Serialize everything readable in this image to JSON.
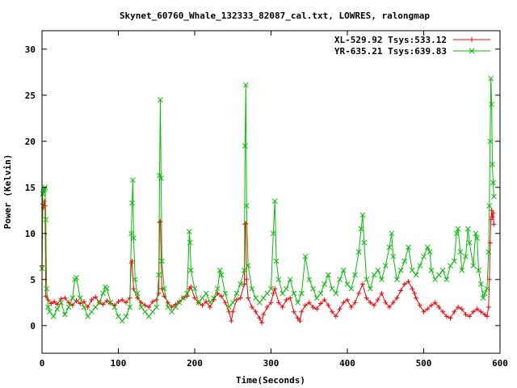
{
  "chart_data": {
    "type": "line",
    "title": "Skynet_60760_Whale_132333_82087_cal.txt, LOWRES, ralongmap",
    "xlabel": "Time(Seconds)",
    "ylabel": "Power (Kelvin)",
    "xlim": [
      0,
      600
    ],
    "ylim": [
      -3,
      32
    ],
    "xticks": [
      0,
      100,
      200,
      300,
      400,
      500,
      600
    ],
    "yticks": [
      0,
      5,
      10,
      15,
      20,
      25,
      30
    ],
    "grid": false,
    "legend_position": "top-right",
    "series": [
      {
        "name": "XL-529.92 Tsys:533.12",
        "color": "#ff0000",
        "marker": "plus",
        "points": [
          [
            0,
            6.5
          ],
          [
            1,
            13.2
          ],
          [
            2,
            12.8
          ],
          [
            3,
            13.5
          ],
          [
            4,
            13.0
          ],
          [
            5,
            3.2
          ],
          [
            8,
            2.8
          ],
          [
            12,
            2.4
          ],
          [
            16,
            2.6
          ],
          [
            20,
            2.3
          ],
          [
            25,
            2.9
          ],
          [
            30,
            3.0
          ],
          [
            35,
            2.5
          ],
          [
            40,
            2.2
          ],
          [
            45,
            2.7
          ],
          [
            50,
            2.4
          ],
          [
            55,
            2.6
          ],
          [
            60,
            2.0
          ],
          [
            65,
            2.8
          ],
          [
            70,
            3.1
          ],
          [
            75,
            2.5
          ],
          [
            80,
            2.3
          ],
          [
            85,
            2.7
          ],
          [
            90,
            2.4
          ],
          [
            95,
            2.2
          ],
          [
            100,
            2.6
          ],
          [
            105,
            2.8
          ],
          [
            110,
            2.5
          ],
          [
            115,
            3.0
          ],
          [
            117,
            6.8
          ],
          [
            118,
            7.0
          ],
          [
            120,
            4.0
          ],
          [
            125,
            3.0
          ],
          [
            130,
            2.5
          ],
          [
            135,
            2.2
          ],
          [
            140,
            2.0
          ],
          [
            145,
            2.6
          ],
          [
            150,
            2.8
          ],
          [
            153,
            3.5
          ],
          [
            154,
            11.2
          ],
          [
            155,
            11.3
          ],
          [
            157,
            4.0
          ],
          [
            160,
            3.2
          ],
          [
            165,
            2.5
          ],
          [
            170,
            2.0
          ],
          [
            175,
            2.3
          ],
          [
            180,
            2.6
          ],
          [
            185,
            3.0
          ],
          [
            190,
            3.2
          ],
          [
            193,
            4.0
          ],
          [
            195,
            4.2
          ],
          [
            200,
            3.0
          ],
          [
            205,
            2.5
          ],
          [
            210,
            2.2
          ],
          [
            215,
            2.6
          ],
          [
            220,
            2.0
          ],
          [
            225,
            2.8
          ],
          [
            230,
            3.5
          ],
          [
            235,
            3.2
          ],
          [
            240,
            2.5
          ],
          [
            245,
            1.5
          ],
          [
            248,
            0.5
          ],
          [
            250,
            1.5
          ],
          [
            255,
            2.8
          ],
          [
            260,
            3.0
          ],
          [
            265,
            4.5
          ],
          [
            266,
            11.0
          ],
          [
            267,
            11.1
          ],
          [
            268,
            5.0
          ],
          [
            270,
            3.0
          ],
          [
            275,
            2.0
          ],
          [
            280,
            1.5
          ],
          [
            285,
            0.8
          ],
          [
            288,
            0.3
          ],
          [
            290,
            1.2
          ],
          [
            295,
            2.0
          ],
          [
            300,
            2.5
          ],
          [
            303,
            3.5
          ],
          [
            305,
            4.0
          ],
          [
            310,
            2.5
          ],
          [
            315,
            2.0
          ],
          [
            320,
            2.8
          ],
          [
            325,
            3.0
          ],
          [
            330,
            1.5
          ],
          [
            335,
            0.8
          ],
          [
            338,
            0.5
          ],
          [
            340,
            1.5
          ],
          [
            345,
            2.2
          ],
          [
            350,
            2.5
          ],
          [
            355,
            2.0
          ],
          [
            360,
            1.8
          ],
          [
            365,
            2.4
          ],
          [
            370,
            2.8
          ],
          [
            375,
            2.2
          ],
          [
            380,
            1.5
          ],
          [
            385,
            1.0
          ],
          [
            390,
            1.8
          ],
          [
            395,
            2.5
          ],
          [
            400,
            2.8
          ],
          [
            405,
            2.0
          ],
          [
            410,
            2.5
          ],
          [
            415,
            3.5
          ],
          [
            420,
            4.5
          ],
          [
            425,
            3.0
          ],
          [
            430,
            2.5
          ],
          [
            435,
            2.2
          ],
          [
            440,
            2.8
          ],
          [
            445,
            3.5
          ],
          [
            450,
            2.5
          ],
          [
            455,
            2.0
          ],
          [
            460,
            2.5
          ],
          [
            465,
            3.0
          ],
          [
            470,
            3.8
          ],
          [
            475,
            4.5
          ],
          [
            480,
            4.8
          ],
          [
            485,
            4.0
          ],
          [
            488,
            3.5
          ],
          [
            490,
            3.0
          ],
          [
            495,
            2.2
          ],
          [
            500,
            1.5
          ],
          [
            505,
            1.8
          ],
          [
            510,
            2.2
          ],
          [
            515,
            2.5
          ],
          [
            520,
            2.0
          ],
          [
            525,
            1.5
          ],
          [
            530,
            1.0
          ],
          [
            535,
            0.8
          ],
          [
            540,
            1.5
          ],
          [
            545,
            2.0
          ],
          [
            550,
            1.8
          ],
          [
            555,
            1.2
          ],
          [
            560,
            1.0
          ],
          [
            565,
            1.5
          ],
          [
            570,
            1.8
          ],
          [
            575,
            1.5
          ],
          [
            580,
            1.2
          ],
          [
            583,
            1.0
          ],
          [
            585,
            2.0
          ],
          [
            586,
            5.0
          ],
          [
            587,
            9.0
          ],
          [
            588,
            11.5
          ],
          [
            589,
            12.5
          ],
          [
            590,
            11.8
          ],
          [
            591,
            12.2
          ],
          [
            592,
            11.0
          ]
        ]
      },
      {
        "name": "YR-635.21 Tsys:639.83",
        "color": "#00c000",
        "marker": "cross",
        "points": [
          [
            0,
            6.2
          ],
          [
            1,
            14.3
          ],
          [
            2,
            14.5
          ],
          [
            3,
            14.8
          ],
          [
            4,
            15.0
          ],
          [
            5,
            11.5
          ],
          [
            6,
            4.0
          ],
          [
            8,
            2.0
          ],
          [
            10,
            1.5
          ],
          [
            15,
            1.0
          ],
          [
            20,
            1.8
          ],
          [
            25,
            2.5
          ],
          [
            30,
            1.2
          ],
          [
            35,
            2.0
          ],
          [
            40,
            3.0
          ],
          [
            43,
            5.0
          ],
          [
            45,
            5.2
          ],
          [
            50,
            3.0
          ],
          [
            55,
            2.0
          ],
          [
            60,
            1.0
          ],
          [
            65,
            1.5
          ],
          [
            70,
            2.0
          ],
          [
            75,
            2.5
          ],
          [
            80,
            3.5
          ],
          [
            83,
            4.2
          ],
          [
            85,
            4.0
          ],
          [
            90,
            2.5
          ],
          [
            95,
            2.0
          ],
          [
            100,
            1.0
          ],
          [
            105,
            0.5
          ],
          [
            110,
            1.0
          ],
          [
            115,
            2.0
          ],
          [
            117,
            10.0
          ],
          [
            118,
            13.3
          ],
          [
            119,
            15.8
          ],
          [
            120,
            9.5
          ],
          [
            122,
            5.0
          ],
          [
            125,
            3.5
          ],
          [
            130,
            2.0
          ],
          [
            135,
            1.5
          ],
          [
            140,
            1.0
          ],
          [
            145,
            1.5
          ],
          [
            150,
            2.0
          ],
          [
            153,
            5.5
          ],
          [
            154,
            16.3
          ],
          [
            155,
            24.5
          ],
          [
            156,
            16.0
          ],
          [
            157,
            7.0
          ],
          [
            160,
            4.0
          ],
          [
            165,
            2.0
          ],
          [
            170,
            1.5
          ],
          [
            175,
            2.0
          ],
          [
            180,
            2.5
          ],
          [
            185,
            3.0
          ],
          [
            190,
            3.5
          ],
          [
            193,
            10.2
          ],
          [
            194,
            9.0
          ],
          [
            195,
            6.0
          ],
          [
            200,
            4.0
          ],
          [
            205,
            2.5
          ],
          [
            210,
            3.0
          ],
          [
            215,
            3.5
          ],
          [
            220,
            2.5
          ],
          [
            225,
            3.0
          ],
          [
            230,
            4.0
          ],
          [
            233,
            6.0
          ],
          [
            235,
            5.5
          ],
          [
            240,
            3.5
          ],
          [
            245,
            2.0
          ],
          [
            250,
            2.5
          ],
          [
            255,
            3.5
          ],
          [
            260,
            4.5
          ],
          [
            265,
            6.0
          ],
          [
            266,
            19.5
          ],
          [
            267,
            26.1
          ],
          [
            268,
            13.0
          ],
          [
            270,
            6.5
          ],
          [
            275,
            4.0
          ],
          [
            280,
            3.0
          ],
          [
            285,
            2.5
          ],
          [
            290,
            3.0
          ],
          [
            295,
            3.5
          ],
          [
            300,
            4.0
          ],
          [
            303,
            10.0
          ],
          [
            305,
            13.5
          ],
          [
            307,
            7.0
          ],
          [
            310,
            5.0
          ],
          [
            315,
            3.5
          ],
          [
            320,
            4.0
          ],
          [
            325,
            5.0
          ],
          [
            330,
            3.5
          ],
          [
            335,
            2.5
          ],
          [
            340,
            3.5
          ],
          [
            345,
            7.5
          ],
          [
            350,
            5.0
          ],
          [
            355,
            4.0
          ],
          [
            360,
            3.0
          ],
          [
            365,
            3.5
          ],
          [
            370,
            4.5
          ],
          [
            375,
            5.5
          ],
          [
            380,
            4.0
          ],
          [
            385,
            3.5
          ],
          [
            390,
            5.0
          ],
          [
            395,
            6.0
          ],
          [
            400,
            4.5
          ],
          [
            405,
            4.0
          ],
          [
            410,
            5.5
          ],
          [
            415,
            8.0
          ],
          [
            418,
            10.5
          ],
          [
            420,
            12.0
          ],
          [
            422,
            9.0
          ],
          [
            425,
            5.0
          ],
          [
            430,
            4.0
          ],
          [
            435,
            5.5
          ],
          [
            440,
            6.0
          ],
          [
            445,
            5.0
          ],
          [
            450,
            6.5
          ],
          [
            455,
            8.5
          ],
          [
            458,
            10.0
          ],
          [
            460,
            7.5
          ],
          [
            465,
            5.0
          ],
          [
            470,
            6.0
          ],
          [
            475,
            7.0
          ],
          [
            480,
            8.5
          ],
          [
            485,
            6.0
          ],
          [
            490,
            5.5
          ],
          [
            495,
            6.5
          ],
          [
            500,
            7.5
          ],
          [
            505,
            8.5
          ],
          [
            508,
            8.0
          ],
          [
            510,
            6.0
          ],
          [
            515,
            5.0
          ],
          [
            520,
            5.5
          ],
          [
            525,
            6.0
          ],
          [
            530,
            5.0
          ],
          [
            535,
            6.5
          ],
          [
            540,
            7.0
          ],
          [
            543,
            10.0
          ],
          [
            545,
            10.5
          ],
          [
            548,
            8.0
          ],
          [
            550,
            6.0
          ],
          [
            555,
            7.5
          ],
          [
            558,
            10.5
          ],
          [
            560,
            9.0
          ],
          [
            565,
            6.5
          ],
          [
            568,
            10.0
          ],
          [
            570,
            9.5
          ],
          [
            572,
            6.0
          ],
          [
            575,
            4.5
          ],
          [
            578,
            3.0
          ],
          [
            580,
            3.5
          ],
          [
            583,
            4.0
          ],
          [
            585,
            8.0
          ],
          [
            586,
            13.0
          ],
          [
            587,
            20.0
          ],
          [
            588,
            26.8
          ],
          [
            589,
            24.0
          ],
          [
            590,
            17.5
          ],
          [
            591,
            15.5
          ],
          [
            592,
            14.0
          ]
        ]
      }
    ]
  }
}
